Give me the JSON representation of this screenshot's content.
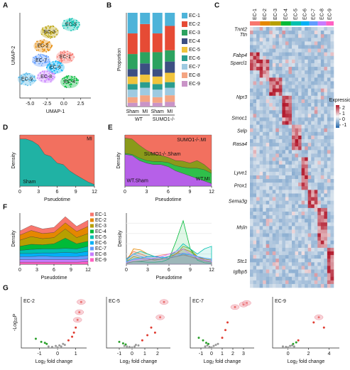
{
  "chart_data": [
    {
      "type": "clusters",
      "panel": "A",
      "xlabel": "UMAP-1",
      "ylabel": "UMAP-2",
      "xlim": [
        -6.5,
        4
      ],
      "ylim": [
        -4,
        6
      ],
      "xticks": [
        {
          "value": -5,
          "label": "-5.0"
        },
        -2.5,
        {
          "value": 0,
          "label": "0.0"
        },
        2.5
      ],
      "clusters": [
        {
          "name": "EC-1",
          "color": "#f8766d",
          "x": 0.2,
          "y": 0.8
        },
        {
          "name": "EC-2",
          "color": "#e58700",
          "x": -3.1,
          "y": 2.1
        },
        {
          "name": "EC-3",
          "color": "#b79f00",
          "x": -2.1,
          "y": 3.75
        },
        {
          "name": "EC-4",
          "color": "#00ba38",
          "x": 0.85,
          "y": -2.1
        },
        {
          "name": "EC-5",
          "color": "#00c0af",
          "x": 1.06,
          "y": 4.6
        },
        {
          "name": "EC-6",
          "color": "#00b0f6",
          "x": -1.25,
          "y": -0.4
        },
        {
          "name": "EC-7",
          "color": "#619cff",
          "x": -3.35,
          "y": 0.4
        },
        {
          "name": "EC-8",
          "color": "#c77cff",
          "x": -2.6,
          "y": -1.5
        },
        {
          "name": "EC-9",
          "color": "#4fb6e8",
          "x": -5.45,
          "y": -1.8
        }
      ]
    },
    {
      "type": "stacked_bar",
      "panel": "B",
      "ylabel": "Proportion",
      "ylim": [
        0,
        1
      ],
      "categories": [
        "Sham",
        "MI",
        "Sham",
        "MI"
      ],
      "groups": [
        "WT",
        "SUMO1-/-"
      ],
      "series": [
        {
          "name": "EC-1",
          "color": "#4db3d9",
          "values": [
            0.22,
            0.12,
            0.22,
            0.14
          ]
        },
        {
          "name": "EC-2",
          "color": "#e64b35",
          "values": [
            0.22,
            0.3,
            0.2,
            0.26
          ]
        },
        {
          "name": "EC-3",
          "color": "#2ca25f",
          "values": [
            0.16,
            0.12,
            0.18,
            0.12
          ]
        },
        {
          "name": "EC-4",
          "color": "#3c4f82",
          "values": [
            0.08,
            0.12,
            0.08,
            0.12
          ]
        },
        {
          "name": "EC-5",
          "color": "#f0c43c",
          "values": [
            0.08,
            0.08,
            0.08,
            0.1
          ]
        },
        {
          "name": "EC-6",
          "color": "#2a9d8f",
          "values": [
            0.06,
            0.06,
            0.06,
            0.06
          ]
        },
        {
          "name": "EC-7",
          "color": "#9ecae1",
          "values": [
            0.08,
            0.08,
            0.08,
            0.08
          ]
        },
        {
          "name": "EC-8",
          "color": "#f4a582",
          "values": [
            0.06,
            0.07,
            0.06,
            0.07
          ]
        },
        {
          "name": "EC-9",
          "color": "#c994c7",
          "values": [
            0.04,
            0.05,
            0.04,
            0.05
          ]
        }
      ]
    },
    {
      "type": "heatmap",
      "panel": "C",
      "clusters": [
        {
          "name": "EC-1",
          "color": "#f8766d"
        },
        {
          "name": "EC-2",
          "color": "#e58700"
        },
        {
          "name": "EC-3",
          "color": "#b79f00"
        },
        {
          "name": "EC-4",
          "color": "#00ba38"
        },
        {
          "name": "EC-5",
          "color": "#00c0af"
        },
        {
          "name": "EC-6",
          "color": "#00b0f6"
        },
        {
          "name": "EC-7",
          "color": "#619cff"
        },
        {
          "name": "EC-8",
          "color": "#c77cff"
        },
        {
          "name": "EC-9",
          "color": "#ff61c3"
        }
      ],
      "genes": [
        "Tnnt2",
        "Ttn",
        "Fabp4",
        "Sparcl1",
        "Npr3",
        "Smoc1",
        "Selp",
        "Rasa4",
        "Lyve1",
        "Prox1",
        "Sema3g",
        "Msln",
        "Stc1",
        "Igfbp5"
      ],
      "colorbar": {
        "label": "Expression",
        "ticks": [
          2,
          1,
          0,
          -1
        ],
        "lim": [
          -1.5,
          2.5
        ]
      }
    },
    {
      "type": "stacked_area",
      "panel": "D",
      "xlabel": "Pseudotime",
      "ylabel": "Density",
      "x": [
        0,
        1,
        2,
        3,
        4,
        5,
        6,
        7,
        8,
        9,
        10,
        11,
        12
      ],
      "xlim": [
        0,
        12
      ],
      "xticks": [
        0,
        3,
        6,
        9,
        12
      ],
      "ylim": [
        0,
        1
      ],
      "series": [
        {
          "name": "Sham",
          "color": "#20b2a4",
          "values": [
            0.92,
            0.92,
            0.88,
            0.8,
            0.62,
            0.58,
            0.45,
            0.42,
            0.3,
            0.22,
            0.15,
            0.08,
            0.03
          ]
        },
        {
          "name": "MI",
          "color": "#f2705f",
          "values": [
            0.08,
            0.08,
            0.12,
            0.2,
            0.38,
            0.42,
            0.55,
            0.58,
            0.7,
            0.78,
            0.85,
            0.92,
            0.97
          ]
        }
      ]
    },
    {
      "type": "stacked_area",
      "panel": "E",
      "xlabel": "Pseudotime",
      "ylabel": "Density",
      "x": [
        0,
        1,
        2,
        3,
        4,
        5,
        6,
        7,
        8,
        9,
        10,
        11,
        12
      ],
      "xlim": [
        0,
        12
      ],
      "xticks": [
        0,
        3,
        6,
        9,
        12
      ],
      "ylim": [
        0,
        1
      ],
      "series": [
        {
          "name": "WT.Sham",
          "color": "#b660e8",
          "values": [
            0.62,
            0.6,
            0.5,
            0.45,
            0.42,
            0.42,
            0.38,
            0.3,
            0.25,
            0.2,
            0.15,
            0.1,
            0.05
          ]
        },
        {
          "name": "WT.MI",
          "color": "#2fbf4a",
          "values": [
            0.02,
            0.02,
            0.05,
            0.05,
            0.06,
            0.06,
            0.08,
            0.1,
            0.12,
            0.15,
            0.2,
            0.22,
            0.2
          ]
        },
        {
          "name": "SUMO1-/-.Sham",
          "color": "#8a9a1a",
          "values": [
            0.3,
            0.3,
            0.25,
            0.2,
            0.15,
            0.12,
            0.1,
            0.1,
            0.12,
            0.1,
            0.15,
            0.1,
            0.05
          ]
        },
        {
          "name": "SUMO1-/-.MI",
          "color": "#f2705f",
          "values": [
            0.06,
            0.08,
            0.2,
            0.3,
            0.37,
            0.4,
            0.44,
            0.5,
            0.51,
            0.55,
            0.5,
            0.58,
            0.7
          ]
        }
      ]
    },
    {
      "type": "stacked_area",
      "panel": "F",
      "xlabel": "Pseudotime",
      "ylabel": "Density",
      "legend": true,
      "reverse_stack": true,
      "x": [
        0,
        2,
        4,
        6,
        8,
        10,
        12
      ],
      "xlim": [
        0,
        12
      ],
      "xticks": [
        0,
        3,
        6,
        9,
        12
      ],
      "ylim": [
        0,
        1
      ],
      "series": [
        {
          "name": "EC-1",
          "color": "#f8766d",
          "values": [
            0.08,
            0.1,
            0.09,
            0.1,
            0.12,
            0.1,
            0.12
          ]
        },
        {
          "name": "EC-2",
          "color": "#e58700",
          "values": [
            0.1,
            0.12,
            0.1,
            0.1,
            0.12,
            0.12,
            0.14
          ]
        },
        {
          "name": "EC-3",
          "color": "#b79f00",
          "values": [
            0.12,
            0.15,
            0.12,
            0.12,
            0.18,
            0.12,
            0.15
          ]
        },
        {
          "name": "EC-4",
          "color": "#00ba38",
          "values": [
            0.08,
            0.1,
            0.08,
            0.1,
            0.2,
            0.1,
            0.1
          ]
        },
        {
          "name": "EC-5",
          "color": "#00c0af",
          "values": [
            0.06,
            0.08,
            0.08,
            0.08,
            0.08,
            0.08,
            0.1
          ]
        },
        {
          "name": "EC-6",
          "color": "#00b0f6",
          "values": [
            0.06,
            0.06,
            0.06,
            0.07,
            0.08,
            0.07,
            0.08
          ]
        },
        {
          "name": "EC-7",
          "color": "#619cff",
          "values": [
            0.06,
            0.06,
            0.07,
            0.06,
            0.06,
            0.06,
            0.07
          ]
        },
        {
          "name": "EC-8",
          "color": "#c77cff",
          "values": [
            0.05,
            0.05,
            0.05,
            0.05,
            0.05,
            0.05,
            0.05
          ]
        },
        {
          "name": "EC-9",
          "color": "#ff61c3",
          "values": [
            0.04,
            0.04,
            0.04,
            0.04,
            0.04,
            0.04,
            0.05
          ]
        }
      ]
    },
    {
      "type": "line",
      "xlabel": "Pseudotime",
      "ylabel": "Density",
      "x": [
        0,
        1,
        2,
        3,
        4,
        5,
        6,
        7,
        8,
        9,
        10,
        11,
        12
      ],
      "xlim": [
        0,
        12
      ],
      "xticks": [
        0,
        3,
        6,
        9,
        12
      ],
      "ylim": [
        0,
        1
      ],
      "series": [
        {
          "color": "#f8766d",
          "values": [
            0.1,
            0.25,
            0.2,
            0.15,
            0.15,
            0.18,
            0.2,
            0.22,
            0.2,
            0.15,
            0.12,
            0.1,
            0.08
          ]
        },
        {
          "color": "#e58700",
          "values": [
            0.05,
            0.3,
            0.28,
            0.2,
            0.15,
            0.12,
            0.15,
            0.2,
            0.3,
            0.25,
            0.15,
            0.1,
            0.08
          ]
        },
        {
          "color": "#b79f00",
          "values": [
            0.05,
            0.15,
            0.12,
            0.1,
            0.08,
            0.1,
            0.12,
            0.2,
            0.35,
            0.3,
            0.15,
            0.08,
            0.05
          ]
        },
        {
          "color": "#00ba38",
          "values": [
            0.02,
            0.05,
            0.05,
            0.04,
            0.04,
            0.05,
            0.1,
            0.45,
            0.85,
            0.3,
            0.08,
            0.03,
            0.02
          ]
        },
        {
          "color": "#00c0af",
          "values": [
            0.1,
            0.2,
            0.25,
            0.2,
            0.15,
            0.12,
            0.15,
            0.25,
            0.4,
            0.3,
            0.2,
            0.3,
            0.35
          ]
        },
        {
          "color": "#00b0f6",
          "values": [
            0.05,
            0.1,
            0.12,
            0.15,
            0.15,
            0.14,
            0.12,
            0.15,
            0.2,
            0.18,
            0.15,
            0.12,
            0.1
          ]
        },
        {
          "color": "#619cff",
          "values": [
            0.08,
            0.2,
            0.15,
            0.12,
            0.1,
            0.1,
            0.12,
            0.18,
            0.22,
            0.2,
            0.15,
            0.12,
            0.1
          ]
        },
        {
          "color": "#c77cff",
          "values": [
            0.03,
            0.08,
            0.1,
            0.1,
            0.12,
            0.15,
            0.2,
            0.25,
            0.3,
            0.2,
            0.12,
            0.08,
            0.05
          ]
        },
        {
          "color": "#888888",
          "values": [
            0.02,
            0.05,
            0.06,
            0.08,
            0.1,
            0.1,
            0.12,
            0.15,
            0.18,
            0.15,
            0.1,
            0.06,
            0.04
          ]
        }
      ]
    },
    {
      "type": "volcano",
      "panel": "G",
      "title": "EC-2",
      "color": "#e58700",
      "ylabel": [
        "-Log",
        "10",
        "P"
      ],
      "xlabel": [
        "Log",
        "2",
        " fold change"
      ],
      "xlim": [
        -2,
        1.6
      ],
      "xticks": [
        -1,
        0,
        1
      ],
      "ylim": [
        0,
        10
      ],
      "series": [
        {
          "color": "#999999",
          "x": [
            -0.5,
            -0.3,
            -0.1,
            0,
            0.1,
            0.2,
            0.3,
            0.4
          ],
          "y": [
            0.3,
            0.2,
            0.4,
            0.1,
            0.5,
            0.3,
            0.8,
            0.6
          ]
        },
        {
          "color": "#e03c31",
          "x": [
            0.6,
            0.8,
            0.9,
            1.0,
            1.1,
            1.2,
            1.3
          ],
          "y": [
            1.5,
            2.2,
            3,
            4,
            5.5,
            7,
            9
          ]
        },
        {
          "color": "#2ca02c",
          "x": [
            -1.2,
            -0.9,
            -0.7,
            -0.6
          ],
          "y": [
            1.8,
            1.2,
            1,
            0.8
          ]
        }
      ]
    },
    {
      "type": "volcano",
      "title": "EC-5",
      "color": "#00c0af",
      "xlabel": [
        "Log",
        "2",
        " fold change"
      ],
      "xlim": [
        -2,
        3
      ],
      "xticks": [
        -1,
        0,
        1,
        2
      ],
      "ylim": [
        0,
        10
      ],
      "series": [
        {
          "color": "#999999",
          "x": [
            -0.6,
            -0.4,
            -0.2,
            0,
            0.2,
            0.3,
            0.5
          ],
          "y": [
            0.4,
            0.3,
            0.2,
            0.1,
            0.3,
            0.6,
            0.5
          ]
        },
        {
          "color": "#e03c31",
          "x": [
            0.8,
            1.2,
            1.5,
            1.8,
            2.2,
            2.5
          ],
          "y": [
            1.5,
            2.5,
            4,
            3,
            6,
            9
          ]
        },
        {
          "color": "#2ca02c",
          "x": [
            -1,
            -0.7,
            -0.5
          ],
          "y": [
            1.2,
            0.9,
            0.7
          ]
        }
      ]
    },
    {
      "type": "volcano",
      "title": "EC-7",
      "color": "#619cff",
      "xlabel": [
        "Log",
        "2",
        " fold change"
      ],
      "xlim": [
        -2,
        4
      ],
      "xticks": [
        -1,
        0,
        1,
        2,
        3
      ],
      "ylim": [
        0,
        10
      ],
      "series": [
        {
          "color": "#999999",
          "x": [
            -0.6,
            -0.4,
            -0.2,
            0,
            0.2,
            0.4,
            0.6
          ],
          "y": [
            0.3,
            0.5,
            0.2,
            0.1,
            0.4,
            0.6,
            0.8
          ]
        },
        {
          "color": "#e03c31",
          "x": [
            1,
            1.3,
            1.5,
            2.2,
            3,
            3.3
          ],
          "y": [
            2,
            3.5,
            5,
            8,
            8.5,
            8.8
          ]
        },
        {
          "color": "#2ca02c",
          "x": [
            -1.2,
            -0.8,
            -0.5,
            -0.3
          ],
          "y": [
            2,
            1.5,
            1,
            0.8
          ]
        }
      ]
    },
    {
      "type": "volcano",
      "title": "EC-9",
      "color": "#c77cff",
      "xlabel": [
        "Log",
        "2",
        " fold change"
      ],
      "xlim": [
        -1.5,
        5
      ],
      "xticks": [
        0,
        2,
        4
      ],
      "ylim": [
        0,
        10
      ],
      "series": [
        {
          "color": "#999999",
          "x": [
            -0.5,
            -0.2,
            0,
            0.2,
            0.4,
            0.6
          ],
          "y": [
            0.3,
            0.2,
            0.1,
            0.4,
            0.5,
            0.3
          ]
        },
        {
          "color": "#e03c31",
          "x": [
            1,
            2.5,
            3,
            3.5
          ],
          "y": [
            1.5,
            5,
            6,
            4
          ]
        },
        {
          "color": "#2ca02c",
          "x": [
            0.5,
            0.8
          ],
          "y": [
            0.8,
            1.1
          ]
        }
      ]
    }
  ]
}
